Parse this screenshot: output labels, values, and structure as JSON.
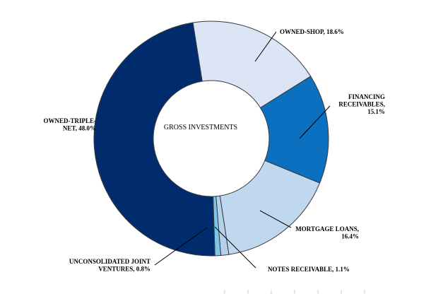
{
  "chart_data": {
    "type": "pie",
    "donut": true,
    "center_label": "GROSS INVESTMENTS",
    "legend": "none",
    "slices": [
      {
        "label_lines": [
          "OWNED-SHOP, 18.6%"
        ],
        "name": "OWNED-SHOP",
        "value": 18.6,
        "color": "#dbe5f5"
      },
      {
        "label_lines": [
          "FINANCING",
          "RECEIVABLES,",
          "15.1%"
        ],
        "name": "FINANCING RECEIVABLES",
        "value": 15.1,
        "color": "#0b70c0"
      },
      {
        "label_lines": [
          "MORTGAGE LOANS,",
          "16.4%"
        ],
        "name": "MORTGAGE LOANS",
        "value": 16.4,
        "color": "#c0d8ef"
      },
      {
        "label_lines": [
          "NOTES RECEIVABLE, 1.1%"
        ],
        "name": "NOTES RECEIVABLE",
        "value": 1.1,
        "color": "#b5d0ea"
      },
      {
        "label_lines": [
          "UNCONSOLIDATED JOINT",
          "VENTURES, 0.8%"
        ],
        "name": "UNCONSOLIDATED JOINT VENTURES",
        "value": 0.8,
        "color": "#7cc6ea"
      },
      {
        "label_lines": [
          "OWNED-TRIPLE-",
          "NET, 48.0%"
        ],
        "name": "OWNED-TRIPLE-NET",
        "value": 48.0,
        "color": "#002c6e"
      }
    ]
  }
}
